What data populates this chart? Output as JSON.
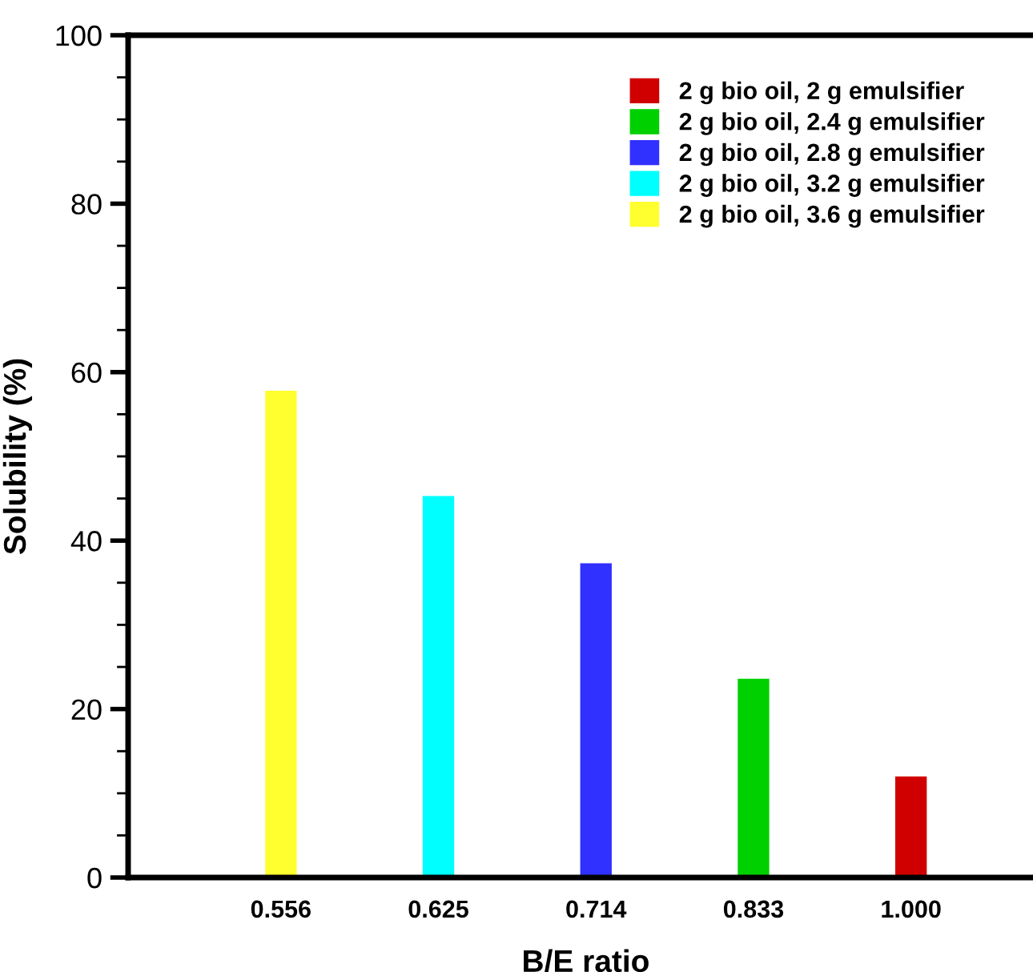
{
  "chart_data": {
    "type": "bar",
    "xlabel": "B/E ratio",
    "ylabel": "Solubility (%)",
    "categories": [
      "0.556",
      "0.625",
      "0.714",
      "0.833",
      "1.000"
    ],
    "series": [
      {
        "name": "2 g bio oil, 2 g emulsifier",
        "color": "#d00000",
        "values": [
          null,
          null,
          null,
          null,
          12.0
        ]
      },
      {
        "name": "2 g bio oil, 2.4 g emulsifier",
        "color": "#00d000",
        "values": [
          null,
          null,
          null,
          23.6,
          null
        ]
      },
      {
        "name": "2 g bio oil, 2.8 g emulsifier",
        "color": "#3030ff",
        "values": [
          null,
          null,
          37.3,
          null,
          null
        ]
      },
      {
        "name": "2 g bio oil, 3.2 g emulsifier",
        "color": "#00ffff",
        "values": [
          null,
          45.3,
          null,
          null,
          null
        ]
      },
      {
        "name": "2 g bio oil, 3.6 g emulsifier",
        "color": "#ffff30",
        "values": [
          57.8,
          null,
          null,
          null,
          null
        ]
      }
    ],
    "ylim": [
      0,
      100
    ],
    "yticks": [
      0,
      {
        "value": 5,
        "label": null
      },
      {
        "value": 10,
        "label": null
      },
      {
        "value": 15,
        "label": null
      },
      20,
      {
        "value": 25,
        "label": null
      },
      {
        "value": 30,
        "label": null
      },
      {
        "value": 35,
        "label": null
      },
      40,
      {
        "value": 45,
        "label": null
      },
      {
        "value": 50,
        "label": null
      },
      {
        "value": 55,
        "label": null
      },
      60,
      {
        "value": 65,
        "label": null
      },
      {
        "value": 70,
        "label": null
      },
      {
        "value": 75,
        "label": null
      },
      80,
      {
        "value": 85,
        "label": null
      },
      {
        "value": 90,
        "label": null
      },
      {
        "value": 95,
        "label": null
      },
      100
    ],
    "grid": false,
    "legend": "top right"
  }
}
